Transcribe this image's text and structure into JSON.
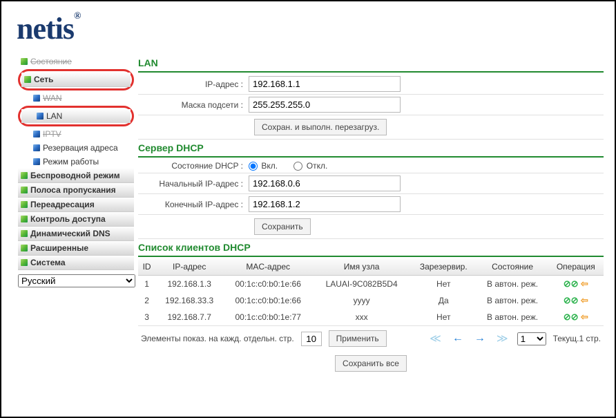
{
  "logo": "netis",
  "sidebar": {
    "items": [
      {
        "label": "Состояние",
        "strike": true
      },
      {
        "label": "Сеть",
        "highlight": true,
        "gradient": true
      },
      {
        "label": "WAN",
        "sub": true,
        "strike": true
      },
      {
        "label": "LAN",
        "sub": true,
        "highlight": true,
        "selected": true
      },
      {
        "label": "IPTV",
        "sub": true,
        "strike": true
      },
      {
        "label": "Резервация адреса",
        "sub": true
      },
      {
        "label": "Режим работы",
        "sub": true
      },
      {
        "label": "Беспроводной режим",
        "gradient": true
      },
      {
        "label": "Полоса пропускания",
        "gradient": true
      },
      {
        "label": "Переадресация",
        "gradient": true
      },
      {
        "label": "Контроль доступа",
        "gradient": true
      },
      {
        "label": "Динамический DNS",
        "gradient": true
      },
      {
        "label": "Расширенные",
        "gradient": true
      },
      {
        "label": "Система",
        "gradient": true
      }
    ],
    "language": "Русский"
  },
  "lan": {
    "title": "LAN",
    "ip_label": "IP-адрес :",
    "ip_value": "192.168.1.1",
    "mask_label": "Маска подсети :",
    "mask_value": "255.255.255.0",
    "save_reboot_btn": "Сохран. и выполн. перезагруз."
  },
  "dhcp": {
    "title": "Сервер DHCP",
    "state_label": "Состояние DHCP :",
    "state_on": "Вкл.",
    "state_off": "Откл.",
    "start_label": "Начальный IP-адрес :",
    "start_value": "192.168.0.6",
    "end_label": "Конечный IP-адрес :",
    "end_value": "192.168.1.2",
    "save_btn": "Сохранить"
  },
  "clients": {
    "title": "Список клиентов DHCP",
    "headers": {
      "id": "ID",
      "ip": "IP-адрес",
      "mac": "MAC-адрес",
      "host": "Имя узла",
      "reserved": "Зарезервир.",
      "state": "Состояние",
      "op": "Операция"
    },
    "rows": [
      {
        "id": "1",
        "ip": "192.168.1.3",
        "mac": "00:1c:c0:b0:1e:66",
        "host": "LAUAI-9C082B5D4",
        "reserved": "Нет",
        "state": "В автон. реж."
      },
      {
        "id": "2",
        "ip": "192.168.33.3",
        "mac": "00:1c:c0:b0:1e:66",
        "host": "уууу",
        "reserved": "Да",
        "state": "В автон. реж."
      },
      {
        "id": "3",
        "ip": "192.168.7.7",
        "mac": "00:1c:c0:b0:1e:77",
        "host": "xxx",
        "reserved": "Нет",
        "state": "В автон. реж."
      }
    ],
    "pager": {
      "per_page_label": "Элементы показ. на кажд. отдельн. стр.",
      "per_page_value": "10",
      "apply_btn": "Применить",
      "page_value": "1",
      "current_label": "Текущ.1 стр."
    },
    "save_all_btn": "Сохранить все"
  }
}
